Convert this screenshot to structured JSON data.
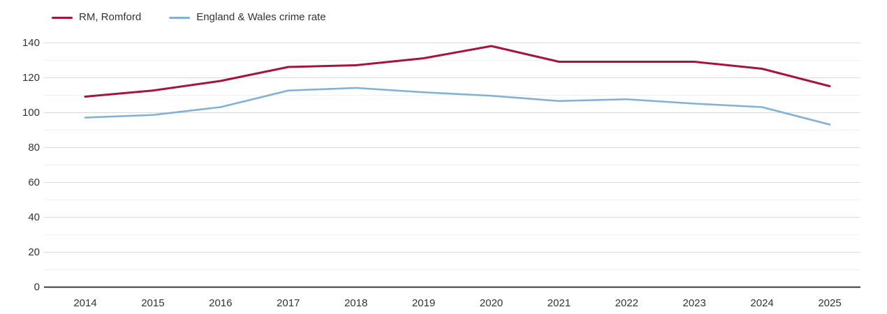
{
  "chart_data": {
    "type": "line",
    "title": "",
    "xlabel": "",
    "ylabel": "",
    "x": [
      2014,
      2015,
      2016,
      2017,
      2018,
      2019,
      2020,
      2021,
      2022,
      2023,
      2024,
      2025
    ],
    "ylim": [
      0,
      140
    ],
    "ytick_step": 20,
    "minor_gridline_step": 10,
    "grid": "horizontal",
    "legend_position": "top-left",
    "series": [
      {
        "name": "RM, Romford",
        "color": "#a8133c",
        "values": [
          109,
          112.5,
          118,
          126,
          127,
          131,
          138,
          129,
          129,
          129,
          125,
          115
        ]
      },
      {
        "name": "England & Wales crime rate",
        "color": "#7fb2d6",
        "values": [
          97,
          98.5,
          103,
          112.5,
          114,
          111.5,
          109.5,
          106.5,
          107.5,
          105,
          103,
          93
        ]
      }
    ],
    "colors": {
      "axis_line": "#222222",
      "major_gridline": "#d9d9d9",
      "minor_gridline": "#f0f0f0",
      "tick_label": "#333333",
      "background": "#ffffff"
    }
  }
}
